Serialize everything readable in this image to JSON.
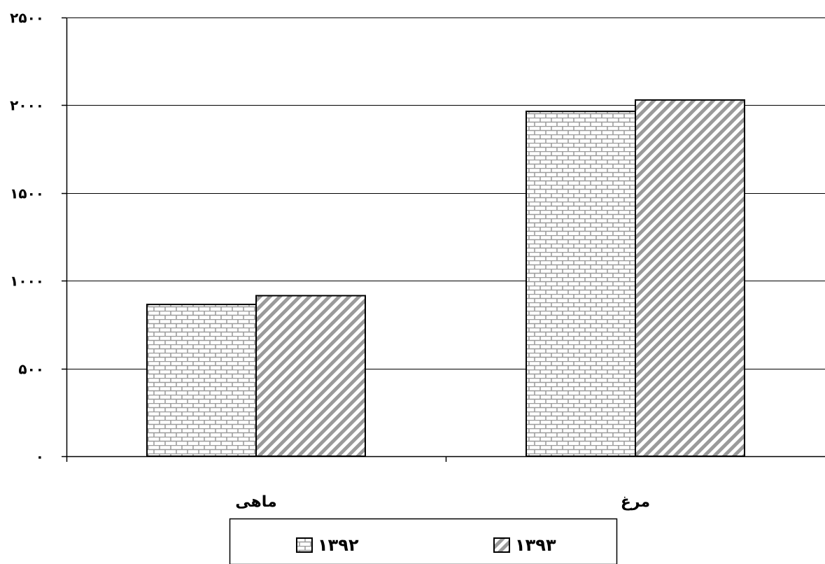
{
  "chart_data": {
    "type": "bar",
    "categories": [
      "مرغ",
      "ماهی"
    ],
    "series": [
      {
        "name": "۱۳۹۲",
        "values": [
          1965,
          865
        ],
        "pattern": "bricks"
      },
      {
        "name": "۱۳۹۳",
        "values": [
          2030,
          915
        ],
        "pattern": "diagonal"
      }
    ],
    "ylim": [
      0,
      2500
    ],
    "y_ticks": [
      0,
      500,
      1000,
      1500,
      2000,
      2500
    ],
    "y_tick_labels": [
      "۰",
      "۵۰۰",
      "۱۰۰۰",
      "۱۵۰۰",
      "۲۰۰۰",
      "۲۵۰۰"
    ],
    "grid": true,
    "legend_position": "bottom",
    "colors": {
      "bar_outline": "#000000",
      "grid": "#000000",
      "pattern": "#9a9a9a"
    }
  }
}
